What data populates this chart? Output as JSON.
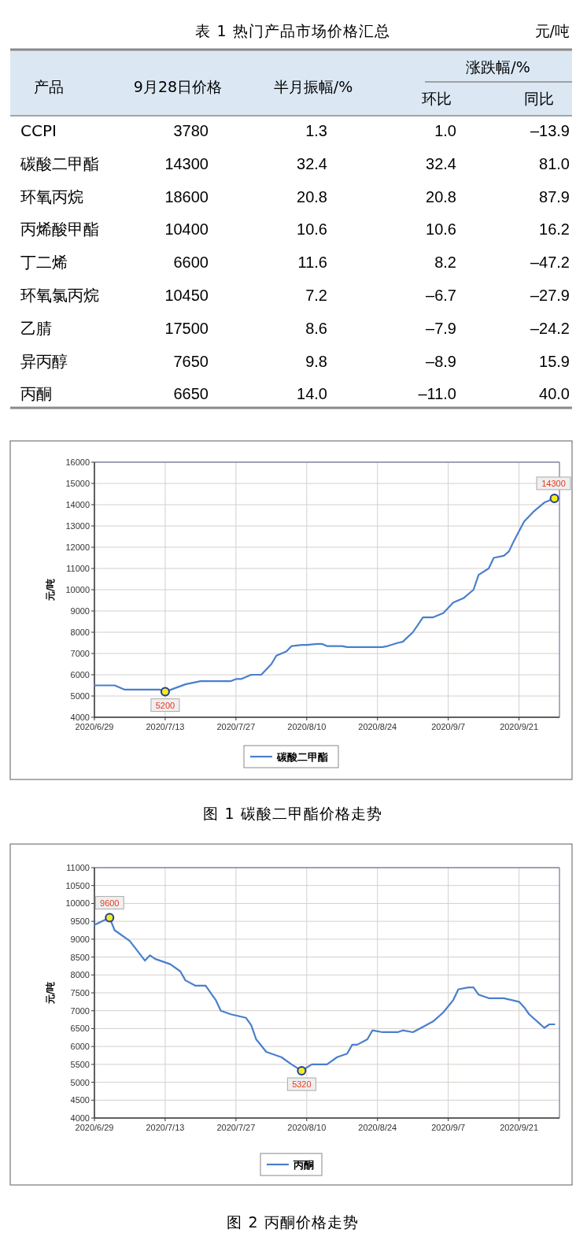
{
  "chart_data": [
    {
      "type": "heatmap",
      "title": "表 1  热门产品市场价格汇总",
      "categories": [
        "9月28日价格",
        "半月振幅/%",
        "环比",
        "同比"
      ],
      "y_categories": [
        "CCPI",
        "碳酸二甲酯",
        "环氧丙烷",
        "丙烯酸甲酯",
        "丁二烯",
        "环氧氯丙烷",
        "乙腈",
        "异丙醇",
        "丙酮"
      ],
      "cells": [
        [
          3780,
          1.3,
          1.0,
          -13.9
        ],
        [
          14300,
          32.4,
          32.4,
          81.0
        ],
        [
          18600,
          20.8,
          20.8,
          87.9
        ],
        [
          10400,
          10.6,
          10.6,
          16.2
        ],
        [
          6600,
          11.6,
          8.2,
          -47.2
        ],
        [
          10450,
          7.2,
          -6.7,
          -27.9
        ],
        [
          17500,
          8.6,
          -7.9,
          -24.2
        ],
        [
          7650,
          9.8,
          -8.9,
          15.9
        ],
        [
          6650,
          14.0,
          -11.0,
          40.0
        ]
      ],
      "cell_labels": [
        [
          "3780",
          "1.3",
          "1.0",
          "–13.9"
        ],
        [
          "14300",
          "32.4",
          "32.4",
          "81.0"
        ],
        [
          "18600",
          "20.8",
          "20.8",
          "87.9"
        ],
        [
          "10400",
          "10.6",
          "10.6",
          "16.2"
        ],
        [
          "6600",
          "11.6",
          "8.2",
          "–47.2"
        ],
        [
          "10450",
          "7.2",
          "–6.7",
          "–27.9"
        ],
        [
          "17500",
          "8.6",
          "–7.9",
          "–24.2"
        ],
        [
          "7650",
          "9.8",
          "–8.9",
          "15.9"
        ],
        [
          "6650",
          "14.0",
          "–11.0",
          "40.0"
        ]
      ],
      "annotations": [
        "元/吨",
        "产品",
        "涨跌幅/%"
      ]
    },
    {
      "type": "line",
      "title": "图 1  碳酸二甲酯价格走势",
      "ylabel": "元/吨",
      "grid": true,
      "legend": "bottom",
      "xlim": [
        "2020-06-29",
        "2020-09-29"
      ],
      "ylim": [
        4000,
        16000
      ],
      "xticks": [
        {
          "value": "2020-06-29",
          "label": "2020/6/29"
        },
        {
          "value": "2020-07-13",
          "label": "2020/7/13"
        },
        {
          "value": "2020-07-27",
          "label": "2020/7/27"
        },
        {
          "value": "2020-08-10",
          "label": "2020/8/10"
        },
        {
          "value": "2020-08-24",
          "label": "2020/8/24"
        },
        {
          "value": "2020-09-07",
          "label": "2020/9/7"
        },
        {
          "value": "2020-09-21",
          "label": "2020/9/21"
        }
      ],
      "yticks": [
        4000,
        5000,
        6000,
        7000,
        8000,
        9000,
        10000,
        11000,
        12000,
        13000,
        14000,
        15000,
        16000
      ],
      "series": [
        {
          "name": "碳酸二甲酯",
          "color": "#4a7fcc",
          "x": [
            "2020-06-29",
            "2020-07-03",
            "2020-07-05",
            "2020-07-12",
            "2020-07-13",
            "2020-07-17",
            "2020-07-20",
            "2020-07-26",
            "2020-07-27",
            "2020-07-28",
            "2020-07-30",
            "2020-08-01",
            "2020-08-03",
            "2020-08-04",
            "2020-08-06",
            "2020-08-07",
            "2020-08-09",
            "2020-08-10",
            "2020-08-12",
            "2020-08-13",
            "2020-08-14",
            "2020-08-17",
            "2020-08-18",
            "2020-08-25",
            "2020-08-26",
            "2020-08-28",
            "2020-08-29",
            "2020-08-31",
            "2020-09-02",
            "2020-09-04",
            "2020-09-06",
            "2020-09-08",
            "2020-09-10",
            "2020-09-12",
            "2020-09-13",
            "2020-09-15",
            "2020-09-16",
            "2020-09-18",
            "2020-09-19",
            "2020-09-20",
            "2020-09-22",
            "2020-09-24",
            "2020-09-26",
            "2020-09-28"
          ],
          "values": [
            5500,
            5500,
            5300,
            5300,
            5200,
            5550,
            5700,
            5700,
            5800,
            5800,
            6000,
            6000,
            6500,
            6900,
            7100,
            7350,
            7400,
            7400,
            7450,
            7450,
            7350,
            7350,
            7300,
            7300,
            7350,
            7500,
            7550,
            8000,
            8700,
            8700,
            8900,
            9400,
            9600,
            10000,
            10700,
            11000,
            11500,
            11600,
            11800,
            12300,
            13200,
            13700,
            14100,
            14300
          ]
        }
      ],
      "annotations": [
        {
          "text": "5200",
          "x": "2020-07-13",
          "y": 5200
        },
        {
          "text": "14300",
          "x": "2020-09-28",
          "y": 14300
        }
      ]
    },
    {
      "type": "line",
      "title": "图 2  丙酮价格走势",
      "ylabel": "元/吨",
      "grid": true,
      "legend": "bottom",
      "xlim": [
        "2020-06-29",
        "2020-09-29"
      ],
      "ylim": [
        4000,
        11000
      ],
      "xticks": [
        {
          "value": "2020-06-29",
          "label": "2020/6/29"
        },
        {
          "value": "2020-07-13",
          "label": "2020/7/13"
        },
        {
          "value": "2020-07-27",
          "label": "2020/7/27"
        },
        {
          "value": "2020-08-10",
          "label": "2020/8/10"
        },
        {
          "value": "2020-08-24",
          "label": "2020/8/24"
        },
        {
          "value": "2020-09-07",
          "label": "2020/9/7"
        },
        {
          "value": "2020-09-21",
          "label": "2020/9/21"
        }
      ],
      "yticks": [
        4000,
        4500,
        5000,
        5500,
        6000,
        6500,
        7000,
        7500,
        8000,
        8500,
        9000,
        9500,
        10000,
        10500,
        11000
      ],
      "series": [
        {
          "name": "丙酮",
          "color": "#4a7fcc",
          "x": [
            "2020-06-29",
            "2020-07-02",
            "2020-07-03",
            "2020-07-06",
            "2020-07-09",
            "2020-07-10",
            "2020-07-11",
            "2020-07-14",
            "2020-07-16",
            "2020-07-17",
            "2020-07-19",
            "2020-07-21",
            "2020-07-23",
            "2020-07-24",
            "2020-07-26",
            "2020-07-29",
            "2020-07-30",
            "2020-07-31",
            "2020-08-02",
            "2020-08-05",
            "2020-08-07",
            "2020-08-09",
            "2020-08-11",
            "2020-08-14",
            "2020-08-16",
            "2020-08-18",
            "2020-08-19",
            "2020-08-20",
            "2020-08-22",
            "2020-08-23",
            "2020-08-25",
            "2020-08-28",
            "2020-08-29",
            "2020-08-31",
            "2020-09-02",
            "2020-09-04",
            "2020-09-06",
            "2020-09-08",
            "2020-09-09",
            "2020-09-11",
            "2020-09-12",
            "2020-09-13",
            "2020-09-15",
            "2020-09-18",
            "2020-09-21",
            "2020-09-22",
            "2020-09-23",
            "2020-09-25",
            "2020-09-26",
            "2020-09-27",
            "2020-09-28"
          ],
          "values": [
            9400,
            9600,
            9250,
            8950,
            8400,
            8550,
            8450,
            8300,
            8100,
            7850,
            7700,
            7700,
            7300,
            7000,
            6900,
            6800,
            6600,
            6200,
            5850,
            5700,
            5500,
            5320,
            5500,
            5500,
            5700,
            5800,
            6050,
            6050,
            6200,
            6450,
            6400,
            6400,
            6450,
            6400,
            6550,
            6700,
            6950,
            7300,
            7600,
            7650,
            7650,
            7450,
            7350,
            7350,
            7250,
            7100,
            6900,
            6650,
            6520,
            6620,
            6620
          ]
        }
      ],
      "annotations": [
        {
          "text": "9600",
          "x": "2020-07-02",
          "y": 9600
        },
        {
          "text": "5320",
          "x": "2020-08-09",
          "y": 5320
        }
      ]
    }
  ]
}
